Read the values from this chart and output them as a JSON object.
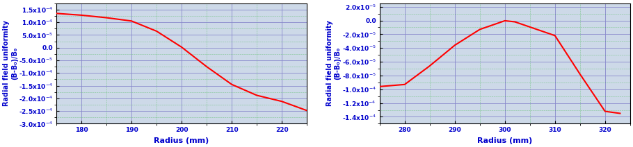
{
  "plot1": {
    "x": [
      175,
      180,
      185,
      190,
      195,
      200,
      205,
      210,
      215,
      220,
      225
    ],
    "y": [
      0.000135,
      0.000128,
      0.000118,
      0.000105,
      6.5e-05,
      2e-06,
      -7.5e-05,
      -0.000145,
      -0.000188,
      -0.000212,
      -0.000248
    ],
    "xlim": [
      175,
      225
    ],
    "xticks": [
      180,
      190,
      200,
      210,
      220
    ],
    "ylim": [
      -0.0003,
      0.000175
    ],
    "yticks": [
      0.00015,
      0.0001,
      5e-05,
      0.0,
      -5e-05,
      -0.0001,
      -0.00015,
      -0.0002,
      -0.00025,
      -0.0003
    ],
    "xlabel": "Radius (mm)",
    "ylabel_line1": "Radial field uniformity",
    "ylabel_line2": "(B-B₀)/B₀",
    "line_color": "#ff0000",
    "label_color": "#0000cc",
    "bg_color": "#cdd9e8",
    "grid_major_color": "#8888cc",
    "grid_minor_color": "#00aa00",
    "tick_label_color": "#000000",
    "spine_color": "#000000"
  },
  "plot2": {
    "x": [
      275,
      280,
      285,
      290,
      295,
      300,
      302,
      310,
      315,
      320,
      323
    ],
    "y": [
      -9.6e-05,
      -9.3e-05,
      -6.6e-05,
      -3.6e-05,
      -1.3e-05,
      -4e-07,
      -2e-06,
      -2.2e-05,
      -7.8e-05,
      -0.000132,
      -0.000135
    ],
    "xlim": [
      275,
      325
    ],
    "xticks": [
      280,
      290,
      300,
      310,
      320
    ],
    "ylim": [
      -0.00015,
      2.5e-05
    ],
    "yticks": [
      2e-05,
      0.0,
      -2e-05,
      -4e-05,
      -6e-05,
      -8e-05,
      -0.0001,
      -0.00012,
      -0.00014
    ],
    "xlabel": "Radius (mm)",
    "ylabel_line1": "Radial field uniformity",
    "ylabel_line2": "(B-B₀)/B₀",
    "line_color": "#ff0000",
    "label_color": "#0000cc",
    "bg_color": "#cdd9e8",
    "grid_major_color": "#8888cc",
    "grid_minor_color": "#00aa00",
    "tick_label_color": "#000000",
    "spine_color": "#000000"
  },
  "fig_bg": "#ffffff"
}
